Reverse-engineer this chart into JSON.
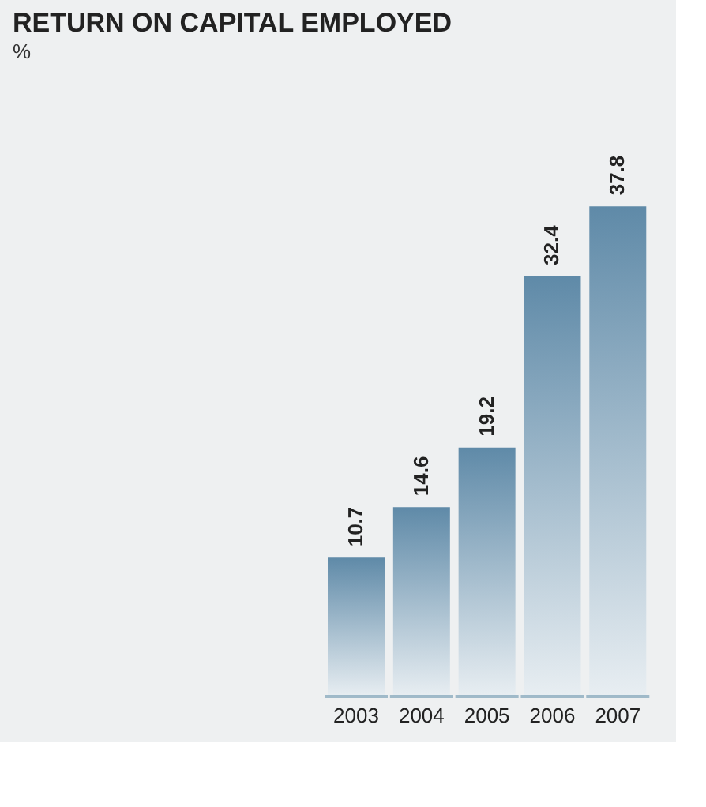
{
  "chart_data": {
    "type": "bar",
    "title": "RETURN ON CAPITAL EMPLOYED",
    "subtitle": "%",
    "categories": [
      "2003",
      "2004",
      "2005",
      "2006",
      "2007"
    ],
    "values": [
      10.7,
      14.6,
      19.2,
      32.4,
      37.8
    ],
    "color": "#5f8aa8",
    "data_labels": true
  }
}
